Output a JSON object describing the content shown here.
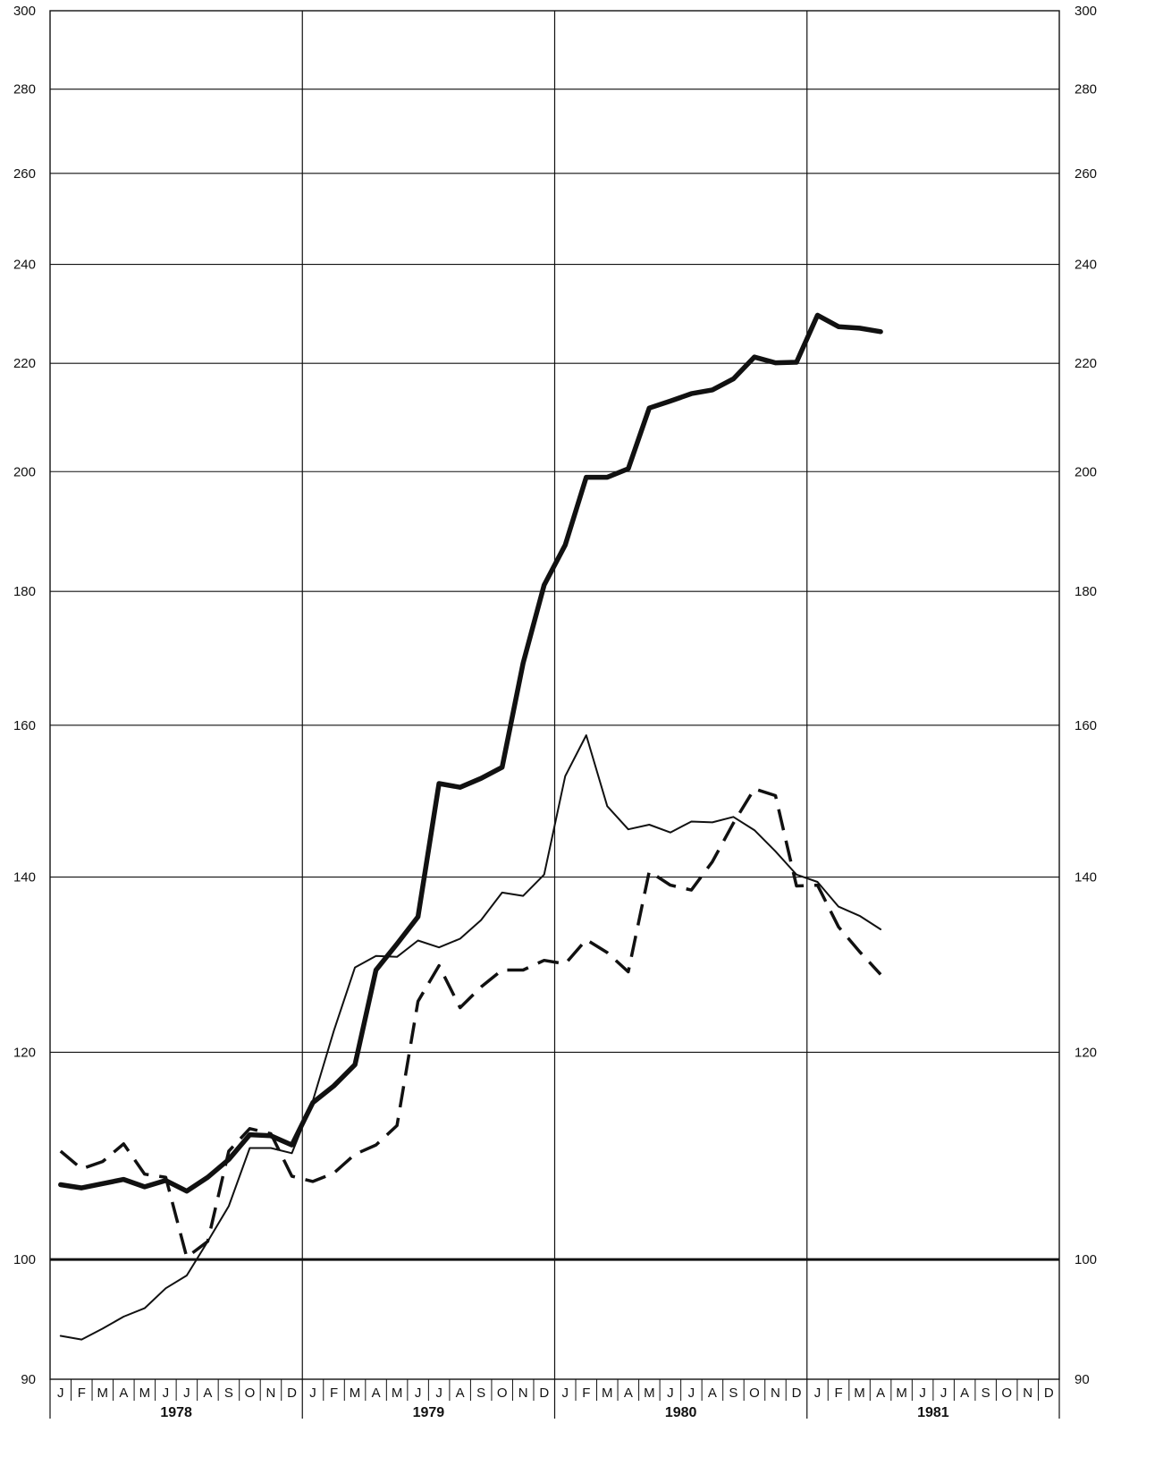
{
  "chart_data": {
    "type": "line",
    "title": "",
    "xlabel": "",
    "ylabel": "",
    "y_scale": "log",
    "ylim": [
      90,
      300
    ],
    "y_ticks": [
      90,
      100,
      120,
      140,
      160,
      180,
      200,
      220,
      240,
      260,
      280,
      300
    ],
    "y_ticks_right": [
      90,
      100,
      120,
      140,
      160,
      180,
      200,
      220,
      240,
      260,
      280,
      300
    ],
    "baseline": 100,
    "years": [
      "1978",
      "1979",
      "1980",
      "1981"
    ],
    "month_labels": [
      "J",
      "F",
      "M",
      "A",
      "M",
      "J",
      "J",
      "A",
      "S",
      "O",
      "N",
      "D"
    ],
    "x_start": "1978-01",
    "x_end": "1981-12",
    "grid": "vertical lines between years; horizontal lines at each y tick",
    "legend": "none",
    "series": [
      {
        "style": "thick solid",
        "x": [
          "1978-01",
          "1978-02",
          "1978-03",
          "1978-04",
          "1978-05",
          "1978-06",
          "1978-07",
          "1978-08",
          "1978-09",
          "1978-10",
          "1978-11",
          "1978-12",
          "1979-01",
          "1979-02",
          "1979-03",
          "1979-04",
          "1979-05",
          "1979-06",
          "1979-07",
          "1979-08",
          "1979-09",
          "1979-10",
          "1979-11",
          "1979-12",
          "1980-01",
          "1980-02",
          "1980-03",
          "1980-04",
          "1980-05",
          "1980-06",
          "1980-07",
          "1980-08",
          "1980-09",
          "1980-10",
          "1980-11",
          "1980-12",
          "1981-01",
          "1981-02",
          "1981-03",
          "1981-04"
        ],
        "values": [
          106.8,
          106.5,
          106.9,
          107.3,
          106.6,
          107.2,
          106.2,
          107.5,
          109.2,
          111.6,
          111.5,
          110.6,
          114.8,
          116.5,
          118.7,
          129.0,
          132.0,
          135.2,
          152.0,
          151.5,
          152.7,
          154.2,
          169.0,
          181.0,
          187.5,
          199.0,
          199.0,
          200.5,
          211.5,
          212.8,
          214.2,
          214.9,
          217.0,
          221.2,
          220.1,
          220.2,
          229.5,
          227.2,
          226.9,
          226.2
        ]
      },
      {
        "style": "thin solid",
        "x": [
          "1978-01",
          "1978-02",
          "1978-03",
          "1978-04",
          "1978-05",
          "1978-06",
          "1978-07",
          "1978-08",
          "1978-09",
          "1978-10",
          "1978-11",
          "1978-12",
          "1979-01",
          "1979-02",
          "1979-03",
          "1979-04",
          "1979-05",
          "1979-06",
          "1979-07",
          "1979-08",
          "1979-09",
          "1979-10",
          "1979-11",
          "1979-12",
          "1980-01",
          "1980-02",
          "1980-03",
          "1980-04",
          "1980-05",
          "1980-06",
          "1980-07",
          "1980-08",
          "1980-09",
          "1980-10",
          "1980-11",
          "1980-12",
          "1981-01",
          "1981-02",
          "1981-03",
          "1981-04"
        ],
        "values": [
          93.5,
          93.2,
          94.1,
          95.1,
          95.8,
          97.5,
          98.6,
          101.6,
          104.8,
          110.3,
          110.3,
          109.8,
          115.0,
          122.3,
          129.3,
          130.6,
          130.5,
          132.4,
          131.6,
          132.6,
          134.8,
          138.1,
          137.7,
          140.3,
          153.0,
          158.6,
          149.0,
          146.0,
          146.6,
          145.6,
          147.0,
          146.9,
          147.6,
          145.9,
          143.2,
          140.3,
          139.4,
          136.4,
          135.3,
          133.7
        ]
      },
      {
        "style": "dashed",
        "x": [
          "1978-01",
          "1978-02",
          "1978-03",
          "1978-04",
          "1978-05",
          "1978-06",
          "1978-07",
          "1978-08",
          "1978-09",
          "1978-10",
          "1978-11",
          "1978-12",
          "1979-01",
          "1979-02",
          "1979-03",
          "1979-04",
          "1979-05",
          "1979-06",
          "1979-07",
          "1979-08",
          "1979-09",
          "1979-10",
          "1979-11",
          "1979-12",
          "1980-01",
          "1980-02",
          "1980-03",
          "1980-04",
          "1980-05",
          "1980-06",
          "1980-07",
          "1980-08",
          "1980-09",
          "1980-10",
          "1980-11",
          "1980-12",
          "1981-01",
          "1981-02",
          "1981-03",
          "1981-04"
        ],
        "values": [
          110.0,
          108.3,
          109.0,
          110.7,
          107.8,
          107.5,
          100.2,
          101.6,
          110.0,
          112.2,
          111.7,
          107.6,
          107.1,
          107.9,
          109.7,
          110.6,
          112.5,
          125.5,
          129.5,
          124.8,
          127.1,
          129.0,
          129.0,
          130.1,
          129.7,
          132.5,
          131.0,
          128.8,
          140.7,
          139.0,
          138.4,
          141.9,
          146.8,
          151.3,
          150.4,
          138.9,
          139.0,
          134.0,
          131.1,
          128.5
        ]
      }
    ]
  }
}
